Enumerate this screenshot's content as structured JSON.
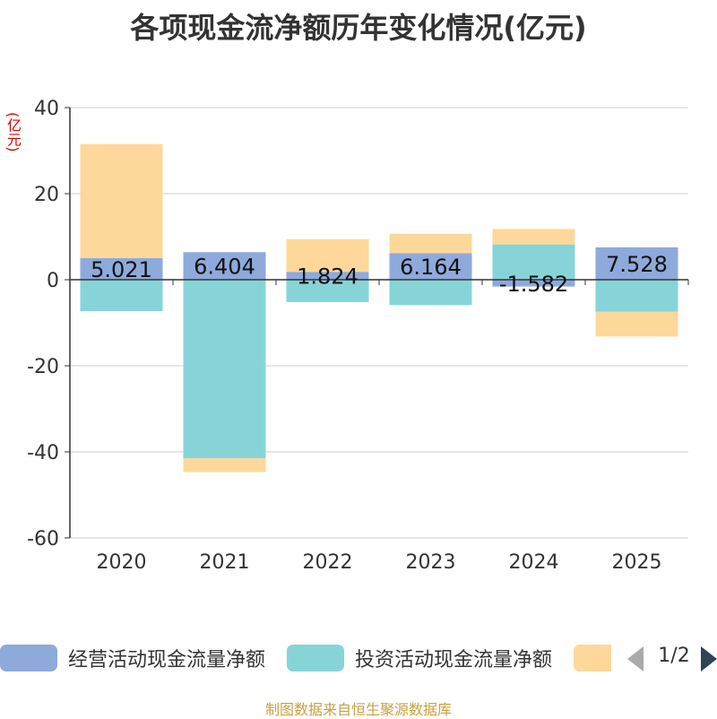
{
  "chart_data": {
    "type": "bar",
    "stacked": true,
    "title": "各项现金流净额历年变化情况(亿元)",
    "ylabel": "(亿元)",
    "ylim": [
      -60,
      40
    ],
    "yticks": [
      40,
      20,
      0,
      -20,
      -40,
      -60
    ],
    "categories": [
      "2020",
      "2021",
      "2022",
      "2023",
      "2024",
      "2025"
    ],
    "series": [
      {
        "name": "经营活动现金流量净额",
        "color": "#8eaadb",
        "values": [
          5.021,
          6.404,
          1.824,
          6.164,
          -1.582,
          7.528
        ]
      },
      {
        "name": "投资活动现金流量净额",
        "color": "#87d4d8",
        "values": [
          -7.3,
          -41.5,
          -5.2,
          -5.9,
          8.2,
          -7.4
        ]
      },
      {
        "name": "",
        "color": "#fdd89a",
        "values": [
          26.5,
          -3.2,
          7.6,
          4.5,
          3.6,
          -5.8
        ]
      }
    ],
    "data_labels": [
      "5.021",
      "6.404",
      "1.824",
      "6.164",
      "-1.582",
      "7.528"
    ]
  },
  "legend": {
    "items": [
      {
        "label": "经营活动现金流量净额",
        "color": "#8eaadb"
      },
      {
        "label": "投资活动现金流量净额",
        "color": "#87d4d8"
      },
      {
        "label": "",
        "color": "#fdd89a"
      }
    ],
    "page_text": "1/2"
  },
  "source": "制图数据来自恒生聚源数据库"
}
